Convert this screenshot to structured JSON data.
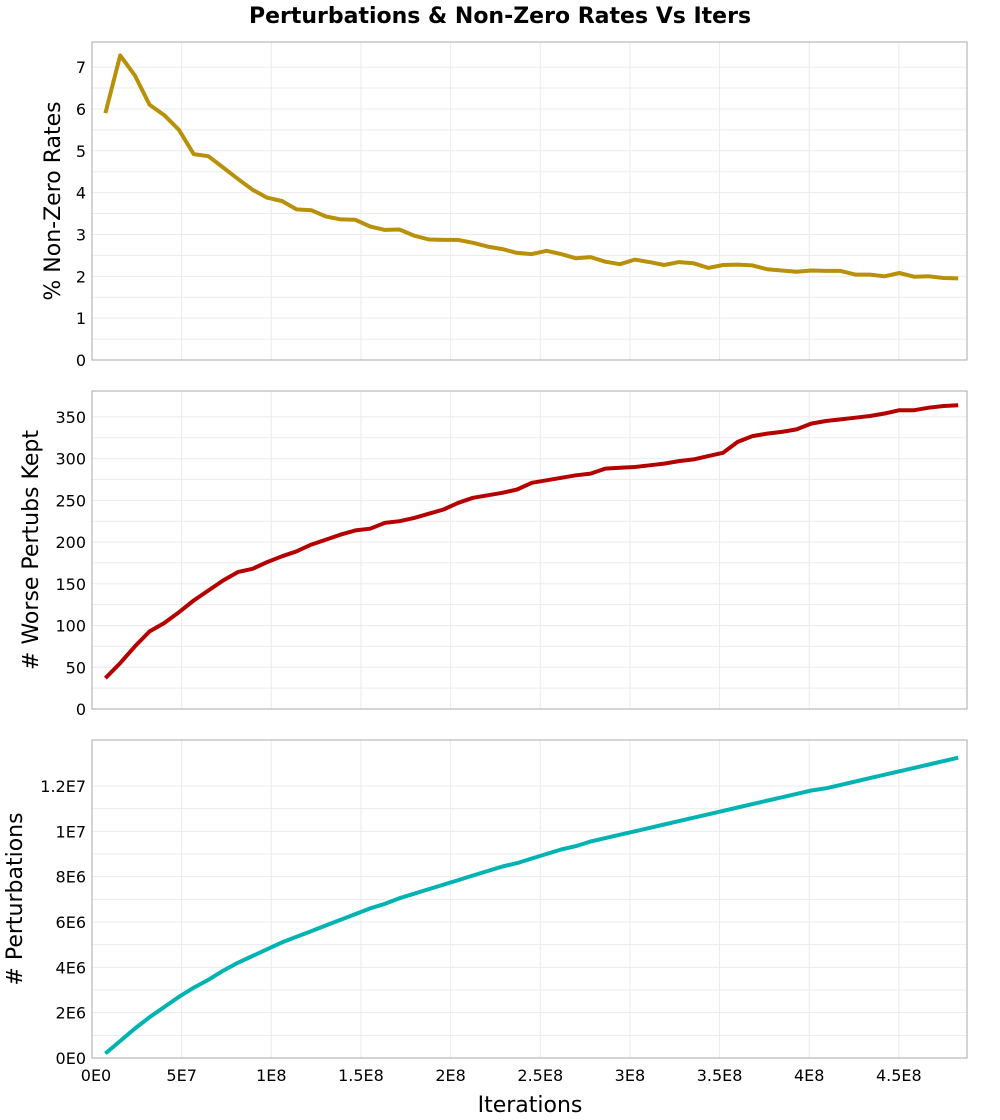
{
  "chart_data": [
    {
      "type": "line",
      "title": "Perturbations & Non-Zero Rates Vs Iters",
      "xlabel": "",
      "ylabel": "% Non-Zero Rates",
      "xlim": [
        0,
        488000000
      ],
      "ylim": [
        0,
        7.6
      ],
      "grid": true,
      "color": "#b8900a",
      "yticks": [
        0,
        1,
        2,
        3,
        4,
        5,
        6,
        7
      ],
      "ytick_labels": [
        "0",
        "1",
        "2",
        "3",
        "4",
        "5",
        "6",
        "7"
      ],
      "values": [
        5.9,
        7.28,
        6.8,
        6.1,
        5.85,
        5.5,
        4.92,
        4.87,
        4.6,
        4.33,
        4.07,
        3.88,
        3.8,
        3.6,
        3.58,
        3.43,
        3.36,
        3.35,
        3.19,
        3.11,
        3.12,
        2.97,
        2.88,
        2.87,
        2.87,
        2.8,
        2.71,
        2.65,
        2.56,
        2.53,
        2.61,
        2.53,
        2.43,
        2.46,
        2.35,
        2.29,
        2.4,
        2.34,
        2.27,
        2.34,
        2.31,
        2.2,
        2.27,
        2.28,
        2.26,
        2.17,
        2.14,
        2.11,
        2.14,
        2.13,
        2.13,
        2.04,
        2.04,
        2.0,
        2.08,
        1.99,
        2.0,
        1.96,
        1.95
      ]
    },
    {
      "type": "line",
      "xlabel": "",
      "ylabel": "# Worse Pertubs Kept",
      "xlim": [
        0,
        488000000
      ],
      "ylim": [
        0,
        381
      ],
      "grid": true,
      "color": "#b50000",
      "yticks": [
        0,
        50,
        100,
        150,
        200,
        250,
        300,
        350
      ],
      "ytick_labels": [
        "0",
        "50",
        "100",
        "150",
        "200",
        "250",
        "300",
        "350"
      ],
      "values": [
        37,
        55,
        75,
        93,
        103,
        116,
        130,
        142,
        154,
        164,
        168,
        176,
        183,
        189,
        197,
        203,
        209,
        214,
        216,
        223,
        225,
        229,
        234,
        239,
        247,
        253,
        256,
        259,
        263,
        271,
        274,
        277,
        280,
        282,
        288,
        289,
        290,
        292,
        294,
        297,
        299,
        303,
        307,
        320,
        327,
        330,
        332,
        335,
        342,
        345,
        347,
        349,
        351,
        354,
        358,
        358,
        361,
        363,
        364
      ]
    },
    {
      "type": "line",
      "xlabel": "Iterations",
      "ylabel": "# Perturbations",
      "xlim": [
        0,
        488000000
      ],
      "ylim": [
        0,
        14030000
      ],
      "grid": true,
      "color": "#00b3b3",
      "yticks": [
        0,
        2000000,
        4000000,
        6000000,
        8000000,
        10000000,
        12000000
      ],
      "ytick_labels": [
        "0E0",
        "2E6",
        "4E6",
        "6E6",
        "8E6",
        "1E7",
        "1.2E7"
      ],
      "xticks": [
        0,
        50000000,
        100000000,
        150000000,
        200000000,
        250000000,
        300000000,
        350000000,
        400000000,
        450000000
      ],
      "xtick_labels": [
        "0E0",
        "5E7",
        "1E8",
        "1.5E8",
        "2E8",
        "2.5E8",
        "3E8",
        "3.5E8",
        "4E8",
        "4.5E8"
      ],
      "values": [
        200000,
        750000,
        1300000,
        1800000,
        2250000,
        2700000,
        3100000,
        3450000,
        3850000,
        4200000,
        4500000,
        4800000,
        5100000,
        5350000,
        5600000,
        5850000,
        6100000,
        6350000,
        6600000,
        6800000,
        7050000,
        7250000,
        7450000,
        7650000,
        7850000,
        8050000,
        8250000,
        8450000,
        8600000,
        8800000,
        9000000,
        9200000,
        9350000,
        9550000,
        9700000,
        9850000,
        10000000,
        10150000,
        10300000,
        10450000,
        10600000,
        10750000,
        10900000,
        11050000,
        11200000,
        11350000,
        11500000,
        11650000,
        11800000,
        11900000,
        12050000,
        12200000,
        12350000,
        12500000,
        12650000,
        12800000,
        12950000,
        13100000,
        13250000
      ]
    }
  ],
  "x_values": {
    "start": 7500000,
    "step": 8200000
  }
}
